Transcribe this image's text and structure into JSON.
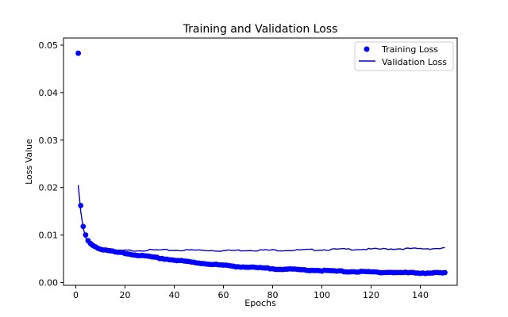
{
  "chart_data": {
    "type": "line",
    "title": "Training and Validation Loss",
    "xlabel": "Epochs",
    "ylabel": "Loss Value",
    "xlim": [
      -5,
      155
    ],
    "ylim": [
      -0.0006,
      0.0515
    ],
    "xticks": [
      0,
      20,
      40,
      60,
      80,
      100,
      120,
      140
    ],
    "yticks": [
      0.0,
      0.01,
      0.02,
      0.03,
      0.04,
      0.05
    ],
    "ytick_labels": [
      "0.00",
      "0.01",
      "0.02",
      "0.03",
      "0.04",
      "0.05"
    ],
    "legend_position": "top-right",
    "series": [
      {
        "name": "Training Loss",
        "style": "markers",
        "color": "#0000ff",
        "keypoints": [
          [
            1,
            0.0483
          ],
          [
            2,
            0.0162
          ],
          [
            3,
            0.0118
          ],
          [
            4,
            0.01
          ],
          [
            5,
            0.0088
          ],
          [
            6,
            0.0082
          ],
          [
            7,
            0.0078
          ],
          [
            8,
            0.0075
          ],
          [
            9,
            0.0072
          ],
          [
            10,
            0.007
          ],
          [
            12,
            0.0068
          ],
          [
            15,
            0.0065
          ],
          [
            20,
            0.0061
          ],
          [
            30,
            0.0054
          ],
          [
            40,
            0.0047
          ],
          [
            50,
            0.0041
          ],
          [
            60,
            0.0036
          ],
          [
            70,
            0.0032
          ],
          [
            80,
            0.0029
          ],
          [
            90,
            0.0027
          ],
          [
            100,
            0.0025
          ],
          [
            110,
            0.0023
          ],
          [
            120,
            0.0022
          ],
          [
            130,
            0.0021
          ],
          [
            140,
            0.002
          ],
          [
            150,
            0.002
          ]
        ]
      },
      {
        "name": "Validation Loss",
        "style": "line",
        "color": "#0000cc",
        "keypoints": [
          [
            1,
            0.0205
          ],
          [
            2,
            0.015
          ],
          [
            3,
            0.0115
          ],
          [
            4,
            0.0095
          ],
          [
            5,
            0.0082
          ],
          [
            6,
            0.0076
          ],
          [
            7,
            0.0073
          ],
          [
            8,
            0.0071
          ],
          [
            10,
            0.0069
          ],
          [
            15,
            0.0067
          ],
          [
            20,
            0.0067
          ],
          [
            30,
            0.0068
          ],
          [
            40,
            0.0068
          ],
          [
            50,
            0.0068
          ],
          [
            60,
            0.0067
          ],
          [
            70,
            0.0068
          ],
          [
            80,
            0.0068
          ],
          [
            90,
            0.0068
          ],
          [
            100,
            0.0069
          ],
          [
            110,
            0.007
          ],
          [
            120,
            0.007
          ],
          [
            130,
            0.0071
          ],
          [
            140,
            0.0071
          ],
          [
            150,
            0.0072
          ]
        ]
      }
    ]
  }
}
